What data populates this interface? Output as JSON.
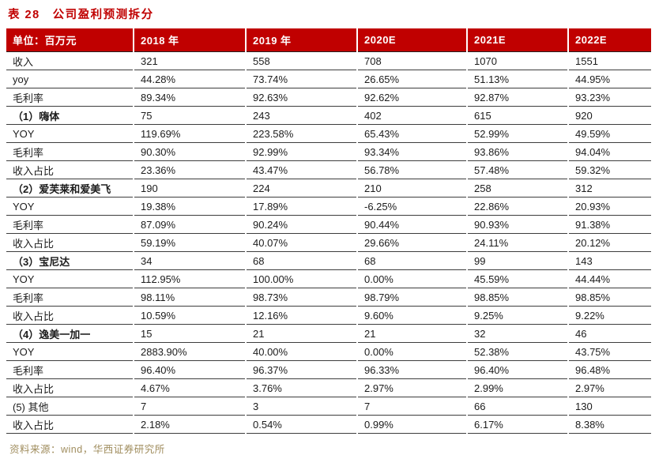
{
  "title": "表 28　公司盈利预测拆分",
  "source": "资料来源：wind，华西证券研究所",
  "colors": {
    "header_bg": "#c00000",
    "title_text": "#c00000",
    "source_text": "#a08d5e",
    "row_line": "#3d3d3d"
  },
  "table": {
    "headers": [
      "单位：百万元",
      "2018 年",
      "2019 年",
      "2020E",
      "2021E",
      "2022E"
    ],
    "rows": [
      {
        "label": "收入",
        "bold": false,
        "values": [
          "321",
          "558",
          "708",
          "1070",
          "1551"
        ]
      },
      {
        "label": "yoy",
        "bold": false,
        "values": [
          "44.28%",
          "73.74%",
          "26.65%",
          "51.13%",
          "44.95%"
        ]
      },
      {
        "label": "毛利率",
        "bold": false,
        "values": [
          "89.34%",
          "92.63%",
          "92.62%",
          "92.87%",
          "93.23%"
        ]
      },
      {
        "label": "（1）嗨体",
        "bold": true,
        "values": [
          "75",
          "243",
          "402",
          "615",
          "920"
        ]
      },
      {
        "label": "YOY",
        "bold": false,
        "values": [
          "119.69%",
          "223.58%",
          "65.43%",
          "52.99%",
          "49.59%"
        ]
      },
      {
        "label": "毛利率",
        "bold": false,
        "values": [
          "90.30%",
          "92.99%",
          "93.34%",
          "93.86%",
          "94.04%"
        ]
      },
      {
        "label": "收入占比",
        "bold": false,
        "values": [
          "23.36%",
          "43.47%",
          "56.78%",
          "57.48%",
          "59.32%"
        ]
      },
      {
        "label": "（2）爱芙莱和爱美飞",
        "bold": true,
        "values": [
          "190",
          "224",
          "210",
          "258",
          "312"
        ]
      },
      {
        "label": "YOY",
        "bold": false,
        "values": [
          "19.38%",
          "17.89%",
          "-6.25%",
          "22.86%",
          "20.93%"
        ]
      },
      {
        "label": "毛利率",
        "bold": false,
        "values": [
          "87.09%",
          "90.24%",
          "90.44%",
          "90.93%",
          "91.38%"
        ]
      },
      {
        "label": "收入占比",
        "bold": false,
        "values": [
          "59.19%",
          "40.07%",
          "29.66%",
          "24.11%",
          "20.12%"
        ]
      },
      {
        "label": "（3）宝尼达",
        "bold": true,
        "values": [
          "34",
          "68",
          "68",
          "99",
          "143"
        ]
      },
      {
        "label": "YOY",
        "bold": false,
        "values": [
          "112.95%",
          "100.00%",
          "0.00%",
          "45.59%",
          "44.44%"
        ]
      },
      {
        "label": "毛利率",
        "bold": false,
        "values": [
          "98.11%",
          "98.73%",
          "98.79%",
          "98.85%",
          "98.85%"
        ]
      },
      {
        "label": "收入占比",
        "bold": false,
        "values": [
          "10.59%",
          "12.16%",
          "9.60%",
          "9.25%",
          "9.22%"
        ]
      },
      {
        "label": "（4）逸美一加一",
        "bold": true,
        "values": [
          "15",
          "21",
          "21",
          "32",
          "46"
        ]
      },
      {
        "label": "YOY",
        "bold": false,
        "values": [
          "2883.90%",
          "40.00%",
          "0.00%",
          "52.38%",
          "43.75%"
        ]
      },
      {
        "label": "毛利率",
        "bold": false,
        "values": [
          "96.40%",
          "96.37%",
          "96.33%",
          "96.40%",
          "96.48%"
        ]
      },
      {
        "label": "收入占比",
        "bold": false,
        "values": [
          "4.67%",
          "3.76%",
          "2.97%",
          "2.99%",
          "2.97%"
        ]
      },
      {
        "label": "(5) 其他",
        "bold": false,
        "values": [
          "7",
          "3",
          "7",
          "66",
          "130"
        ]
      },
      {
        "label": "收入占比",
        "bold": false,
        "values": [
          "2.18%",
          "0.54%",
          "0.99%",
          "6.17%",
          "8.38%"
        ]
      }
    ]
  }
}
